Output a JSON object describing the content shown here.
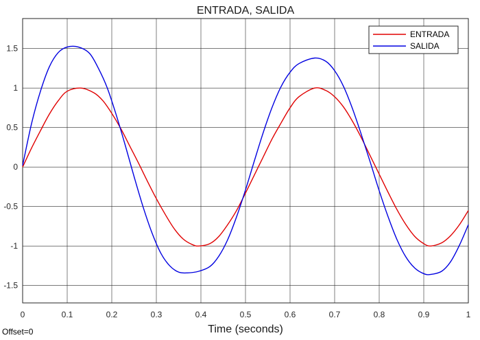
{
  "chart_data": {
    "type": "line",
    "title": "ENTRADA, SALIDA",
    "xlabel": "Time (seconds)",
    "ylabel": "",
    "xlim": [
      0,
      1
    ],
    "ylim": [
      -1.72,
      1.88
    ],
    "grid": true,
    "legend_position": "top-right",
    "x_ticks": [
      0,
      0.1,
      0.2,
      0.3,
      0.4,
      0.5,
      0.6,
      0.7,
      0.8,
      0.9,
      1
    ],
    "x_tick_labels": [
      "0",
      "0.1",
      "0.2",
      "0.3",
      "0.4",
      "0.5",
      "0.6",
      "0.7",
      "0.8",
      "0.9",
      "1"
    ],
    "y_ticks": [
      1.5,
      1,
      0.5,
      0,
      -0.5,
      -1,
      -1.5
    ],
    "y_tick_labels": [
      "1.5",
      "1",
      "0.5",
      "0",
      "-0.5",
      "-1",
      "-1.5"
    ],
    "series": [
      {
        "name": "ENTRADA",
        "color": "#e00000",
        "x": [
          0,
          0.02,
          0.04,
          0.06,
          0.08,
          0.1,
          0.13,
          0.16,
          0.18,
          0.2,
          0.22,
          0.24,
          0.26,
          0.28,
          0.3,
          0.32,
          0.34,
          0.36,
          0.38,
          0.395,
          0.42,
          0.44,
          0.46,
          0.48,
          0.5,
          0.52,
          0.54,
          0.56,
          0.58,
          0.6,
          0.62,
          0.655,
          0.68,
          0.7,
          0.72,
          0.74,
          0.76,
          0.78,
          0.8,
          0.82,
          0.84,
          0.86,
          0.88,
          0.9,
          0.915,
          0.94,
          0.96,
          0.98,
          1.0
        ],
        "values": [
          0,
          0.24,
          0.46,
          0.67,
          0.84,
          0.96,
          1.0,
          0.94,
          0.84,
          0.68,
          0.49,
          0.27,
          0.05,
          -0.18,
          -0.4,
          -0.6,
          -0.78,
          -0.91,
          -0.98,
          -1.0,
          -0.97,
          -0.88,
          -0.73,
          -0.55,
          -0.33,
          -0.1,
          0.13,
          0.36,
          0.56,
          0.75,
          0.89,
          1.0,
          0.97,
          0.89,
          0.76,
          0.58,
          0.37,
          0.14,
          -0.09,
          -0.32,
          -0.54,
          -0.73,
          -0.88,
          -0.97,
          -1.0,
          -0.96,
          -0.87,
          -0.73,
          -0.55
        ]
      },
      {
        "name": "SALIDA",
        "color": "#0000e0",
        "x": [
          0,
          0.02,
          0.04,
          0.06,
          0.08,
          0.1,
          0.125,
          0.15,
          0.17,
          0.19,
          0.21,
          0.23,
          0.25,
          0.27,
          0.29,
          0.31,
          0.33,
          0.35,
          0.37,
          0.395,
          0.42,
          0.44,
          0.46,
          0.48,
          0.5,
          0.52,
          0.54,
          0.56,
          0.58,
          0.6,
          0.62,
          0.655,
          0.68,
          0.7,
          0.72,
          0.74,
          0.76,
          0.78,
          0.8,
          0.82,
          0.84,
          0.86,
          0.88,
          0.9,
          0.915,
          0.94,
          0.96,
          0.98,
          1.0
        ],
        "values": [
          0.02,
          0.55,
          0.96,
          1.27,
          1.45,
          1.52,
          1.52,
          1.44,
          1.25,
          1.0,
          0.66,
          0.28,
          -0.12,
          -0.5,
          -0.83,
          -1.09,
          -1.25,
          -1.33,
          -1.34,
          -1.32,
          -1.26,
          -1.13,
          -0.92,
          -0.63,
          -0.29,
          0.08,
          0.44,
          0.76,
          1.02,
          1.2,
          1.31,
          1.38,
          1.34,
          1.22,
          1.02,
          0.74,
          0.41,
          0.06,
          -0.3,
          -0.63,
          -0.92,
          -1.14,
          -1.28,
          -1.35,
          -1.36,
          -1.32,
          -1.2,
          -0.99,
          -0.73
        ]
      }
    ]
  },
  "footer": {
    "offset_label": "Offset=0"
  }
}
